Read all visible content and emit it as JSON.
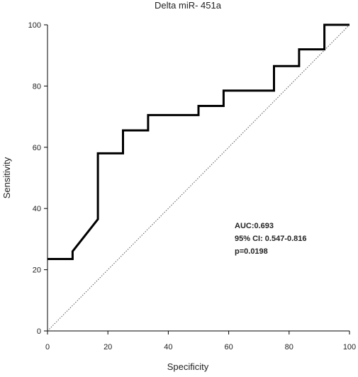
{
  "chart_data": {
    "type": "line",
    "title": "Delta miR- 451a",
    "xlabel": "Specificity",
    "ylabel": "Sensitivity",
    "xlim": [
      0,
      100
    ],
    "ylim": [
      0,
      100
    ],
    "xticks": [
      0,
      20,
      40,
      60,
      80,
      100
    ],
    "yticks": [
      0,
      20,
      40,
      60,
      80,
      100
    ],
    "grid": false,
    "series": [
      {
        "style": "solid",
        "color": "#000000",
        "x": [
          0,
          8.3,
          8.3,
          16.7,
          16.7,
          25,
          25,
          33.3,
          33.3,
          50,
          50,
          58.3,
          58.3,
          75,
          75,
          83.3,
          83.3,
          91.7,
          91.7,
          100
        ],
        "y": [
          23.5,
          23.5,
          26,
          36.5,
          58,
          58,
          65.5,
          65.5,
          70.5,
          70.5,
          73.5,
          73.5,
          78.5,
          78.5,
          86.5,
          86.5,
          92,
          92,
          100,
          100
        ]
      },
      {
        "style": "dotted",
        "color": "#555555",
        "x": [
          0,
          100
        ],
        "y": [
          0,
          100
        ]
      }
    ],
    "annotations": [
      "AUC:0.693",
      "95% CI: 0.547-0.816",
      "p=0.0198"
    ]
  }
}
